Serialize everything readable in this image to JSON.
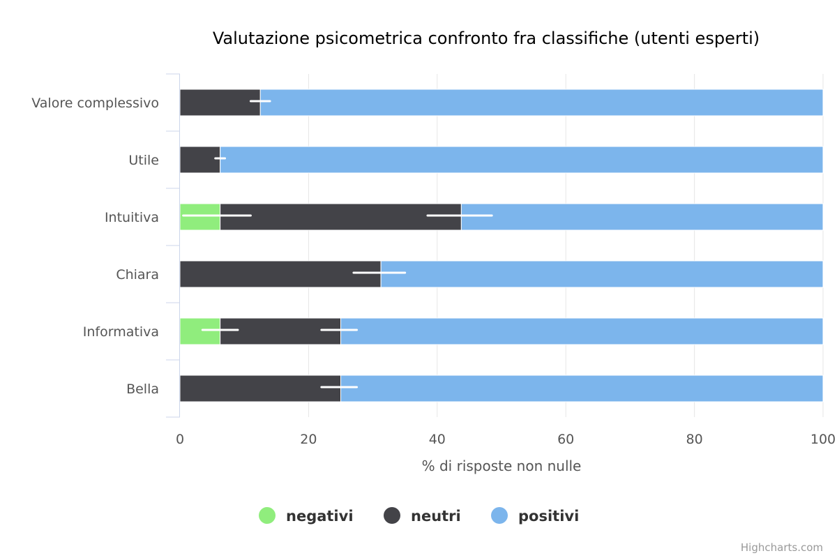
{
  "chart_data": {
    "type": "bar",
    "orientation": "horizontal",
    "stacked": true,
    "title": "Valutazione psicometrica confronto fra classifiche (utenti esperti)",
    "categories": [
      "Valore complessivo",
      "Utile",
      "Intuitiva",
      "Chiara",
      "Informativa",
      "Bella"
    ],
    "series": [
      {
        "name": "negativi",
        "color": "#90ed7d",
        "values": [
          0,
          0,
          6.25,
          0,
          6.25,
          0
        ]
      },
      {
        "name": "neutri",
        "color": "#434348",
        "values": [
          12.5,
          6.25,
          37.5,
          31.25,
          18.75,
          25
        ]
      },
      {
        "name": "positivi",
        "color": "#7cb5ec",
        "values": [
          87.5,
          93.75,
          56.25,
          68.75,
          75,
          75
        ]
      }
    ],
    "error_bars": [
      {
        "category": "Valore complessivo",
        "low": 11,
        "high": 14
      },
      {
        "category": "Utile",
        "low": 5.5,
        "high": 7
      },
      {
        "category": "Intuitiva",
        "low": 0.5,
        "high": 11
      },
      {
        "category": "Intuitiva",
        "low": 38.5,
        "high": 48.5
      },
      {
        "category": "Chiara",
        "low": 27,
        "high": 35
      },
      {
        "category": "Informativa",
        "low": 3.5,
        "high": 9
      },
      {
        "category": "Informativa",
        "low": 22,
        "high": 27.5
      },
      {
        "category": "Bella",
        "low": 22,
        "high": 27.5
      }
    ],
    "xlabel": "% di risposte non nulle",
    "xlim": [
      0,
      100
    ],
    "x_ticks": [
      0,
      20,
      40,
      60,
      80,
      100
    ],
    "grid": true,
    "legend_position": "bottom-center"
  },
  "credits": "Highcharts.com"
}
